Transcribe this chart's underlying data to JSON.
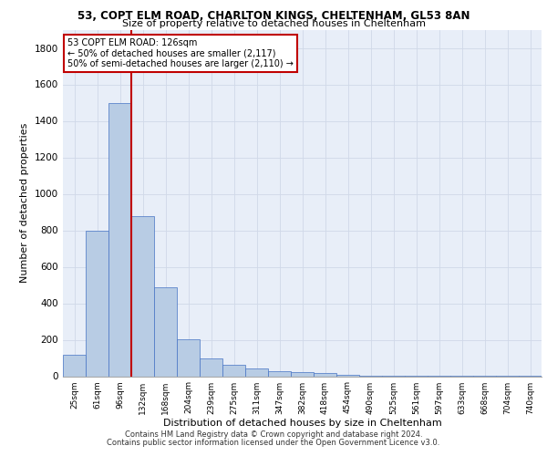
{
  "title_line1": "53, COPT ELM ROAD, CHARLTON KINGS, CHELTENHAM, GL53 8AN",
  "title_line2": "Size of property relative to detached houses in Cheltenham",
  "xlabel": "Distribution of detached houses by size in Cheltenham",
  "ylabel": "Number of detached properties",
  "footer_line1": "Contains HM Land Registry data © Crown copyright and database right 2024.",
  "footer_line2": "Contains public sector information licensed under the Open Government Licence v3.0.",
  "categories": [
    "25sqm",
    "61sqm",
    "96sqm",
    "132sqm",
    "168sqm",
    "204sqm",
    "239sqm",
    "275sqm",
    "311sqm",
    "347sqm",
    "382sqm",
    "418sqm",
    "454sqm",
    "490sqm",
    "525sqm",
    "561sqm",
    "597sqm",
    "633sqm",
    "668sqm",
    "704sqm",
    "740sqm"
  ],
  "values": [
    120,
    800,
    1500,
    880,
    490,
    205,
    100,
    65,
    42,
    30,
    25,
    20,
    10,
    5,
    3,
    2,
    2,
    1,
    1,
    1,
    1
  ],
  "bar_color": "#b8cce4",
  "bar_edge_color": "#4472c4",
  "vline_x_index": 2.5,
  "vline_color": "#c00000",
  "ylim": [
    0,
    1900
  ],
  "yticks": [
    0,
    200,
    400,
    600,
    800,
    1000,
    1200,
    1400,
    1600,
    1800
  ],
  "annotation_text": "53 COPT ELM ROAD: 126sqm\n← 50% of detached houses are smaller (2,117)\n50% of semi-detached houses are larger (2,110) →",
  "annotation_box_color": "#ffffff",
  "annotation_box_edge": "#c00000",
  "grid_color": "#d0d8e8",
  "bg_color": "#e8eef8"
}
